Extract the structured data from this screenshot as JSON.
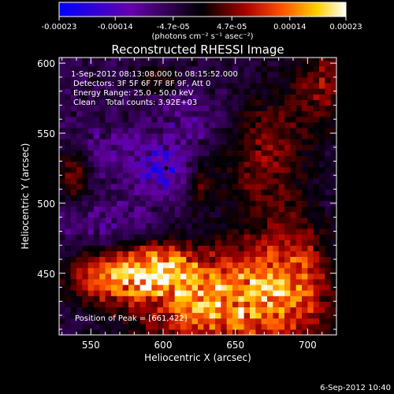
{
  "chart_data": {
    "type": "heatmap",
    "title": "Reconstructed RHESSI Image",
    "xlabel": "Heliocentric X (arcsec)",
    "ylabel": "Heliocentric Y (arcsec)",
    "xlim": [
      528,
      720
    ],
    "ylim": [
      406,
      604
    ],
    "xticks": [
      550,
      600,
      650,
      700
    ],
    "yticks": [
      450,
      500,
      550,
      600
    ],
    "colorbar": {
      "range": [
        -0.00023,
        0.00023
      ],
      "ticks": [
        -0.00023,
        -0.00014,
        -4.7e-05,
        4.7e-05,
        0.00014,
        0.00023
      ],
      "tick_labels": [
        "-0.00023",
        "-0.00014",
        "-4.7e-05",
        "4.7e-05",
        "0.00014",
        "0.00023"
      ],
      "unit_label": "(photons cm⁻² s⁻¹ asec⁻²)",
      "colors": [
        "#0000ff",
        "#6600aa",
        "#000000",
        "#aa0000",
        "#ff5500",
        "#ffd000",
        "#ffffff"
      ]
    },
    "annotations": {
      "line1": "1-Sep-2012 08:13:08.000 to 08:15:52.000",
      "line2": "Detectors: 3F 5F 6F 7F 8F 9F, Att 0",
      "line3": "Energy Range: 25.0 - 50.0 keV",
      "line4": "Clean    Total counts: 3.92E+03",
      "peak": "Position of Peak = [661,422]"
    },
    "peak": {
      "x": 661,
      "y": 422
    },
    "min_marker": {
      "x": 602,
      "y": 525
    },
    "blobs": [
      {
        "x": 640,
        "y": 430,
        "sx": 40,
        "sy": 25,
        "a": 0.00023
      },
      {
        "x": 596,
        "y": 454,
        "sx": 18,
        "sy": 12,
        "a": 0.00017
      },
      {
        "x": 562,
        "y": 448,
        "sx": 22,
        "sy": 14,
        "a": 0.00016
      },
      {
        "x": 690,
        "y": 450,
        "sx": 20,
        "sy": 30,
        "a": 0.00012
      },
      {
        "x": 670,
        "y": 535,
        "sx": 22,
        "sy": 35,
        "a": 0.0001
      },
      {
        "x": 712,
        "y": 585,
        "sx": 15,
        "sy": 25,
        "a": 0.0001
      },
      {
        "x": 538,
        "y": 520,
        "sx": 8,
        "sy": 15,
        "a": 0.0001
      },
      {
        "x": 625,
        "y": 515,
        "sx": 8,
        "sy": 12,
        "a": 8e-05
      },
      {
        "x": 596,
        "y": 588,
        "sx": 12,
        "sy": 8,
        "a": 7e-05
      },
      {
        "x": 602,
        "y": 525,
        "sx": 14,
        "sy": 12,
        "a": -0.00014
      },
      {
        "x": 563,
        "y": 540,
        "sx": 15,
        "sy": 10,
        "a": -6e-05
      },
      {
        "x": 560,
        "y": 485,
        "sx": 25,
        "sy": 15,
        "a": -5e-05
      },
      {
        "x": 620,
        "y": 562,
        "sx": 20,
        "sy": 15,
        "a": -5e-05
      }
    ]
  },
  "footer": {
    "timestamp": "6-Sep-2012 10:40"
  }
}
